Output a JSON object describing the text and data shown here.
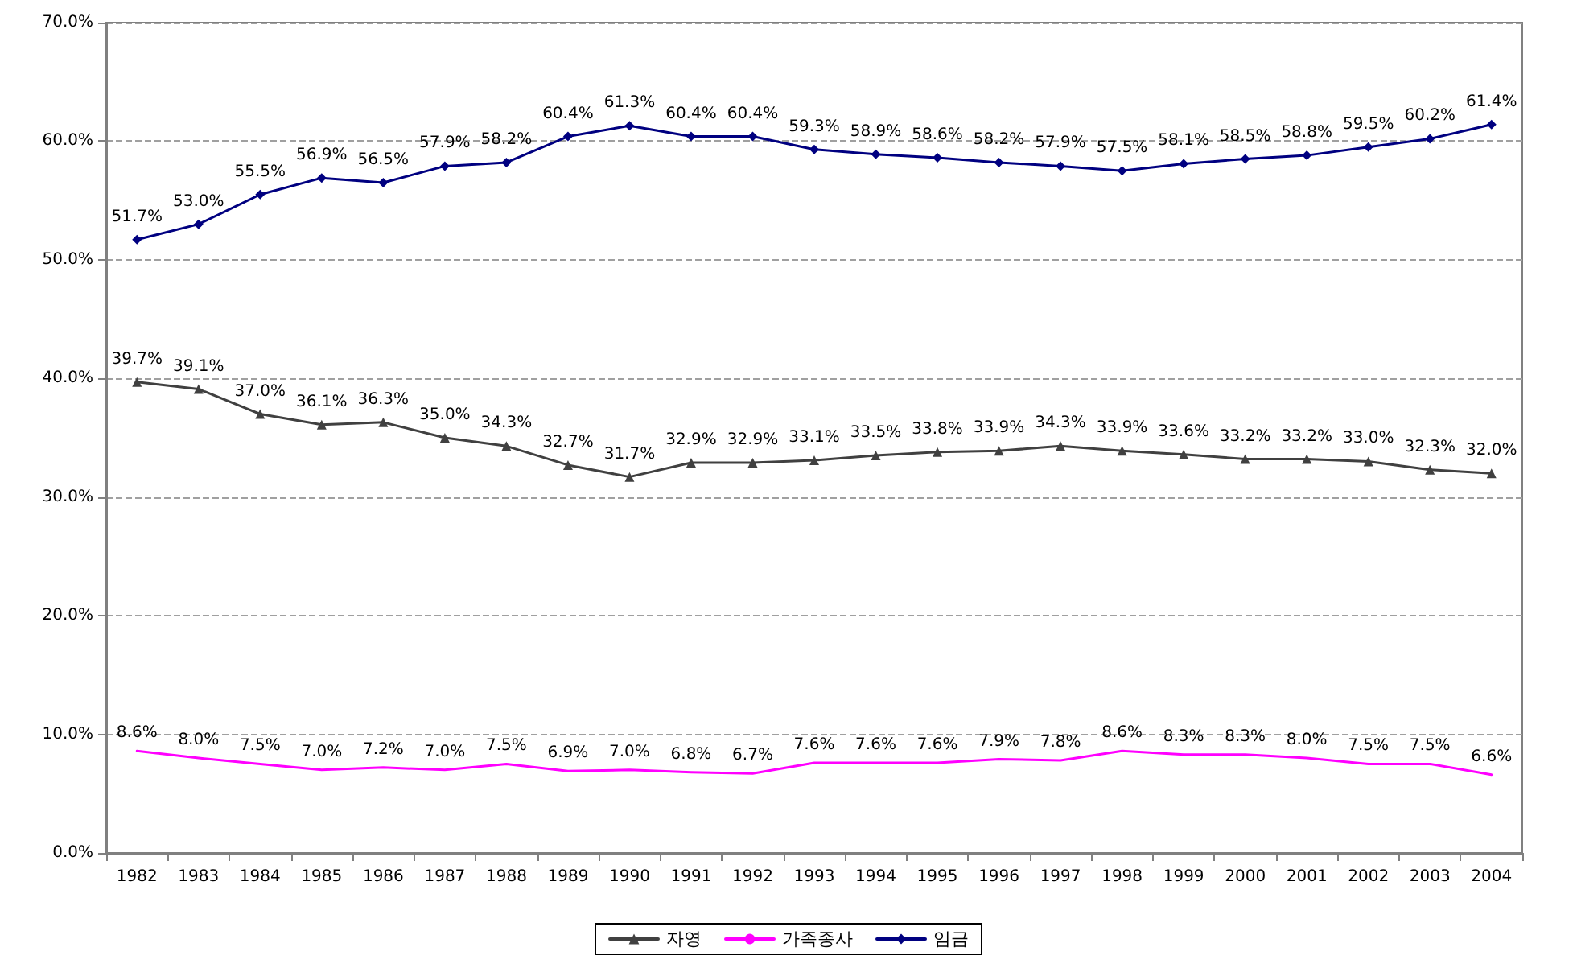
{
  "chart_data": {
    "type": "line",
    "categories": [
      "1982",
      "1983",
      "1984",
      "1985",
      "1986",
      "1987",
      "1988",
      "1989",
      "1990",
      "1991",
      "1992",
      "1993",
      "1994",
      "1995",
      "1996",
      "1997",
      "1998",
      "1999",
      "2000",
      "2001",
      "2002",
      "2003",
      "2004"
    ],
    "series": [
      {
        "name": "자영",
        "color": "#404040",
        "marker": "triangle",
        "values": [
          39.7,
          39.1,
          37.0,
          36.1,
          36.3,
          35.0,
          34.3,
          32.7,
          31.7,
          32.9,
          32.9,
          33.1,
          33.5,
          33.8,
          33.9,
          34.3,
          33.9,
          33.6,
          33.2,
          33.2,
          33.0,
          32.3,
          32.0
        ],
        "value_labels": [
          "39.7%",
          "39.1%",
          "37.0%",
          "36.1%",
          "36.3%",
          "35.0%",
          "34.3%",
          "32.7%",
          "31.7%",
          "32.9%",
          "32.9%",
          "33.1%",
          "33.5%",
          "33.8%",
          "33.9%",
          "34.3%",
          "33.9%",
          "33.6%",
          "33.2%",
          "33.2%",
          "33.0%",
          "32.3%",
          "32.0%"
        ]
      },
      {
        "name": "가족종사",
        "color": "#ff00ff",
        "marker": "none",
        "values": [
          8.6,
          8.0,
          7.5,
          7.0,
          7.2,
          7.0,
          7.5,
          6.9,
          7.0,
          6.8,
          6.7,
          7.6,
          7.6,
          7.6,
          7.9,
          7.8,
          8.6,
          8.3,
          8.3,
          8.0,
          7.5,
          7.5,
          6.6
        ],
        "value_labels": [
          "8.6%",
          "8.0%",
          "7.5%",
          "7.0%",
          "7.2%",
          "7.0%",
          "7.5%",
          "6.9%",
          "7.0%",
          "6.8%",
          "6.7%",
          "7.6%",
          "7.6%",
          "7.6%",
          "7.9%",
          "7.8%",
          "8.6%",
          "8.3%",
          "8.3%",
          "8.0%",
          "7.5%",
          "7.5%",
          "6.6%"
        ]
      },
      {
        "name": "임금",
        "color": "#000080",
        "marker": "diamond",
        "values": [
          51.7,
          53.0,
          55.5,
          56.9,
          56.5,
          57.9,
          58.2,
          60.4,
          61.3,
          60.4,
          60.4,
          59.3,
          58.9,
          58.6,
          58.2,
          57.9,
          57.5,
          58.1,
          58.5,
          58.8,
          59.5,
          60.2,
          61.4
        ],
        "value_labels": [
          "51.7%",
          "53.0%",
          "55.5%",
          "56.9%",
          "56.5%",
          "57.9%",
          "58.2%",
          "60.4%",
          "61.3%",
          "60.4%",
          "60.4%",
          "59.3%",
          "58.9%",
          "58.6%",
          "58.2%",
          "57.9%",
          "57.5%",
          "58.1%",
          "58.5%",
          "58.8%",
          "59.5%",
          "60.2%",
          "61.4%"
        ]
      }
    ],
    "ylim": [
      0,
      70
    ],
    "yticks": [
      {
        "value": 0,
        "label": "0.0%"
      },
      {
        "value": 10,
        "label": "10.0%"
      },
      {
        "value": 20,
        "label": "20.0%"
      },
      {
        "value": 30,
        "label": "30.0%"
      },
      {
        "value": 40,
        "label": "40.0%"
      },
      {
        "value": 50,
        "label": "50.0%"
      },
      {
        "value": 60,
        "label": "60.0%"
      },
      {
        "value": 70,
        "label": "70.0%"
      }
    ],
    "grid": "y",
    "legend": "bottom",
    "line_style": "solid"
  }
}
